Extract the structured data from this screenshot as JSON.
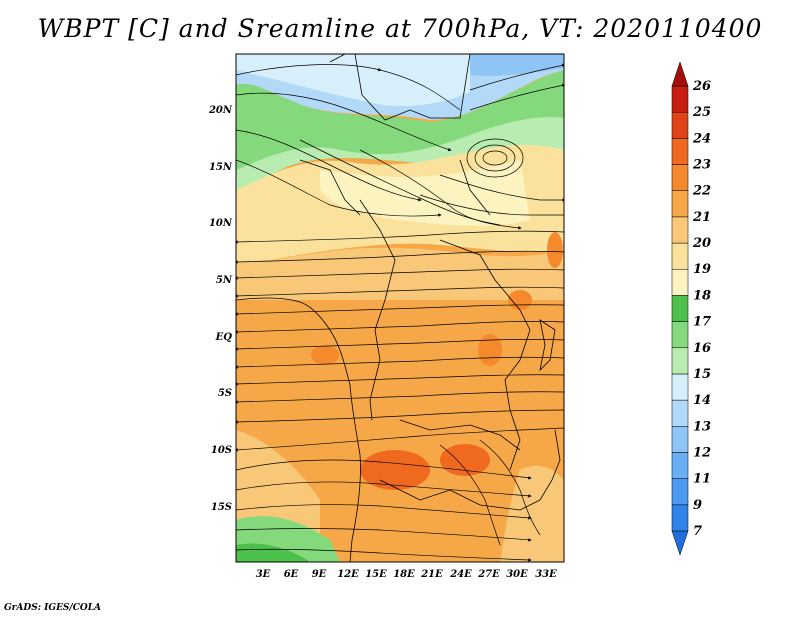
{
  "title": "WBPT [C] and Sreamline at 700hPa, VT: 2020110400",
  "credit": "GrADS: IGES/COLA",
  "map": {
    "lon_ticks": [
      "3E",
      "6E",
      "9E",
      "12E",
      "15E",
      "18E",
      "21E",
      "24E",
      "27E",
      "30E",
      "33E"
    ],
    "lat_ticks": [
      "20N",
      "15N",
      "10N",
      "5N",
      "EQ",
      "5S",
      "10S",
      "15S"
    ]
  },
  "colorbar": {
    "levels": [
      "7",
      "9",
      "11",
      "12",
      "13",
      "14",
      "15",
      "16",
      "17",
      "18",
      "19",
      "20",
      "21",
      "22",
      "23",
      "24",
      "25",
      "26"
    ],
    "colors": [
      "#1e6ee0",
      "#2f82e8",
      "#4a98f0",
      "#6aaff4",
      "#8ec4f6",
      "#b3d9f8",
      "#d6effb",
      "#b8ecb0",
      "#84d97c",
      "#4cc04a",
      "#fbf4c0",
      "#fbe29c",
      "#f8c878",
      "#f6a848",
      "#f58a2c",
      "#ef6a1e",
      "#e04416",
      "#c81e12",
      "#a60e0c"
    ]
  }
}
